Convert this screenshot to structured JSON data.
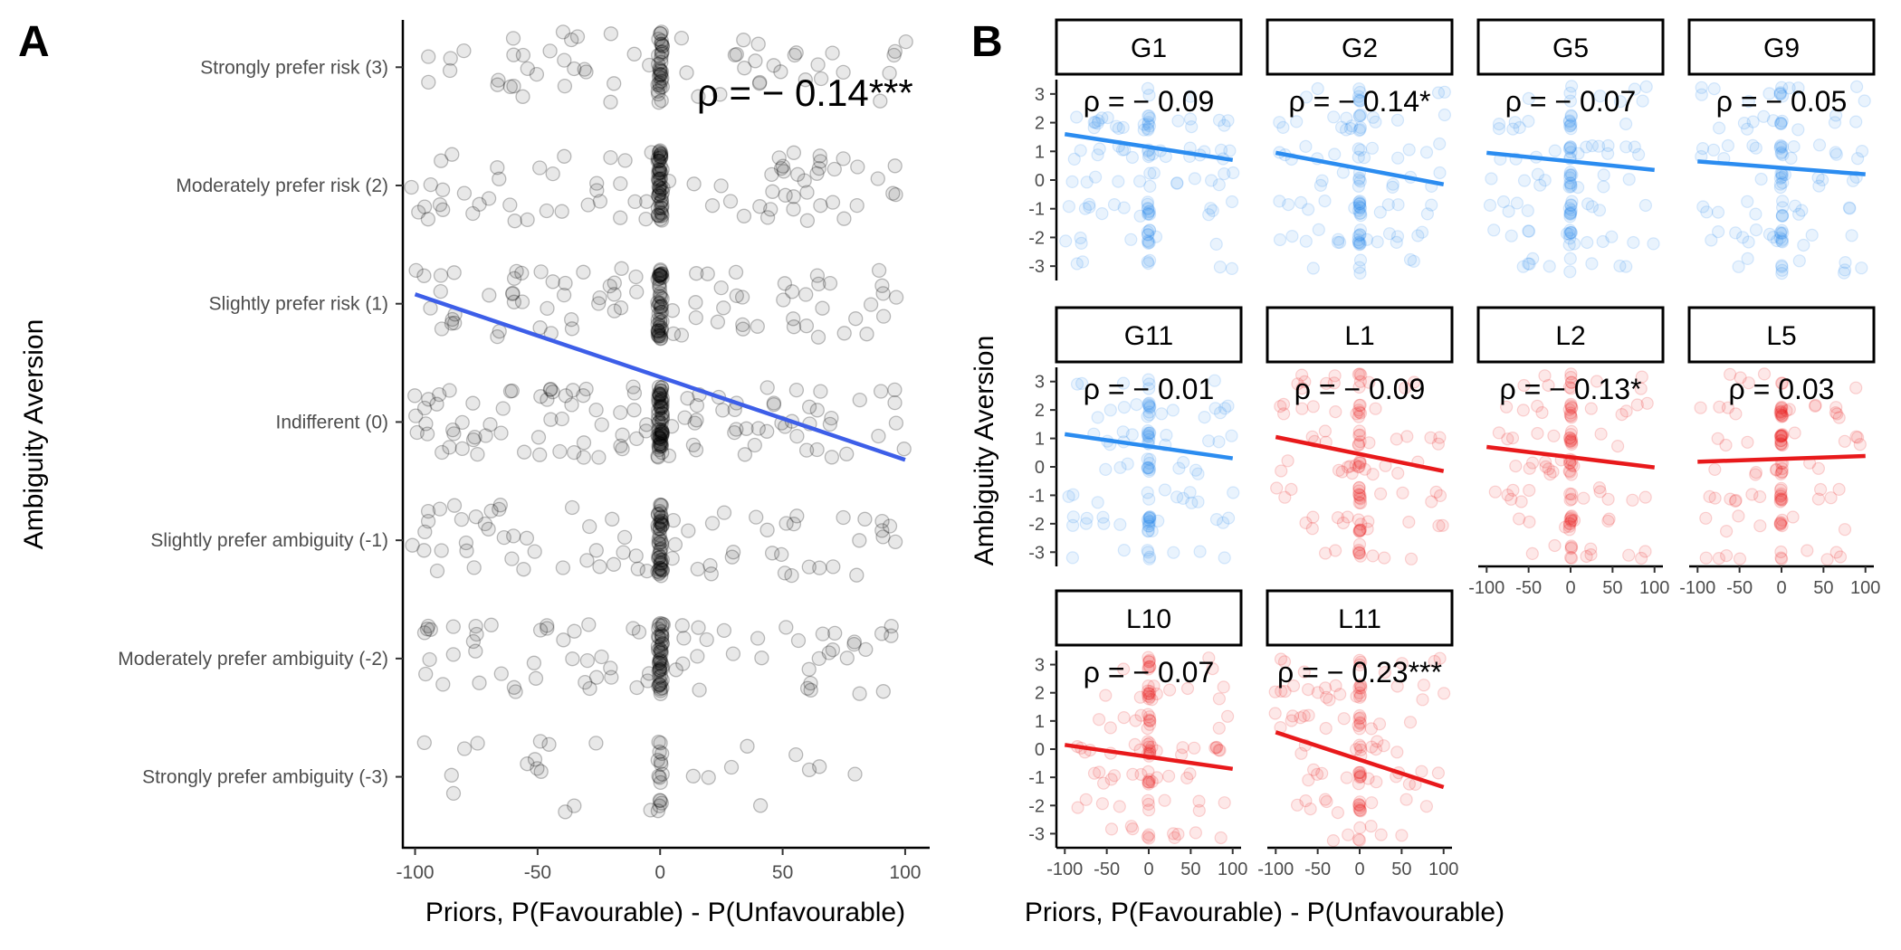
{
  "chart_data": [
    {
      "panel": "A",
      "type": "scatter",
      "xlabel": "Priors, P(Favourable) - P(Unfavourable)",
      "ylabel": "Ambiguity Aversion",
      "xlim": [
        -105,
        110
      ],
      "ylim": [
        -3.6,
        3.4
      ],
      "x_ticks": [
        -100,
        -50,
        0,
        50,
        100
      ],
      "x_tick_labels": [
        "-100",
        "-50",
        "0",
        "50",
        "100"
      ],
      "y_ticks": [
        3,
        2,
        1,
        0,
        -1,
        -2,
        -3
      ],
      "y_tick_labels": [
        "Strongly prefer risk (3)",
        "Moderately prefer risk (2)",
        "Slightly prefer risk (1)",
        "Indifferent (0)",
        "Slightly prefer ambiguity (-1)",
        "Moderately prefer ambiguity (-2)",
        "Strongly prefer ambiguity (-3)"
      ],
      "annotation": "ρ = − 0.14***",
      "fit_line": {
        "x": [
          -100,
          100
        ],
        "y": [
          1.08,
          -0.32
        ]
      },
      "point_color": "#000000",
      "line_color": "#3d5ee8",
      "points_per_level": [
        {
          "level": 3,
          "n": 90
        },
        {
          "level": 2,
          "n": 130
        },
        {
          "level": 1,
          "n": 130
        },
        {
          "level": 0,
          "n": 170
        },
        {
          "level": -1,
          "n": 120
        },
        {
          "level": -2,
          "n": 120
        },
        {
          "level": -3,
          "n": 40
        }
      ],
      "grid": false
    },
    {
      "panel": "B",
      "type": "scatter",
      "xlabel": "Priors, P(Favourable) - P(Unfavourable)",
      "ylabel": "Ambiguity Aversion",
      "xlim": [
        -110,
        110
      ],
      "ylim": [
        -3.5,
        3.5
      ],
      "x_ticks": [
        -100,
        -50,
        0,
        50,
        100
      ],
      "x_tick_labels": [
        "-100",
        "-50",
        "0",
        "50",
        "100"
      ],
      "y_ticks": [
        3,
        2,
        1,
        0,
        -1,
        -2,
        -3
      ],
      "y_tick_labels": [
        "3",
        "2",
        "1",
        "0",
        "-1",
        "-2",
        "-3"
      ],
      "facets": [
        {
          "label": "G1",
          "rho": "ρ = − 0.09",
          "color": "#2b8cf0",
          "fit": [
            1.6,
            0.7
          ]
        },
        {
          "label": "G2",
          "rho": "ρ = − 0.14*",
          "color": "#2b8cf0",
          "fit": [
            0.95,
            -0.15
          ]
        },
        {
          "label": "G5",
          "rho": "ρ = − 0.07",
          "color": "#2b8cf0",
          "fit": [
            0.95,
            0.35
          ]
        },
        {
          "label": "G9",
          "rho": "ρ = − 0.05",
          "color": "#2b8cf0",
          "fit": [
            0.65,
            0.2
          ]
        },
        {
          "label": "G11",
          "rho": "ρ = − 0.01",
          "color": "#2b8cf0",
          "fit": [
            1.15,
            0.3
          ]
        },
        {
          "label": "L1",
          "rho": "ρ = − 0.09",
          "color": "#e8191b",
          "fit": [
            1.05,
            -0.15
          ]
        },
        {
          "label": "L2",
          "rho": "ρ = − 0.13*",
          "color": "#e8191b",
          "fit": [
            0.7,
            -0.02
          ]
        },
        {
          "label": "L5",
          "rho": "ρ = 0.03",
          "color": "#e8191b",
          "fit": [
            0.18,
            0.38
          ]
        },
        {
          "label": "L10",
          "rho": "ρ = − 0.07",
          "color": "#e8191b",
          "fit": [
            0.15,
            -0.7
          ]
        },
        {
          "label": "L11",
          "rho": "ρ = − 0.23***",
          "color": "#e8191b",
          "fit": [
            0.6,
            -1.35
          ]
        }
      ]
    }
  ],
  "panel_letters": {
    "a": "A",
    "b": "B"
  }
}
